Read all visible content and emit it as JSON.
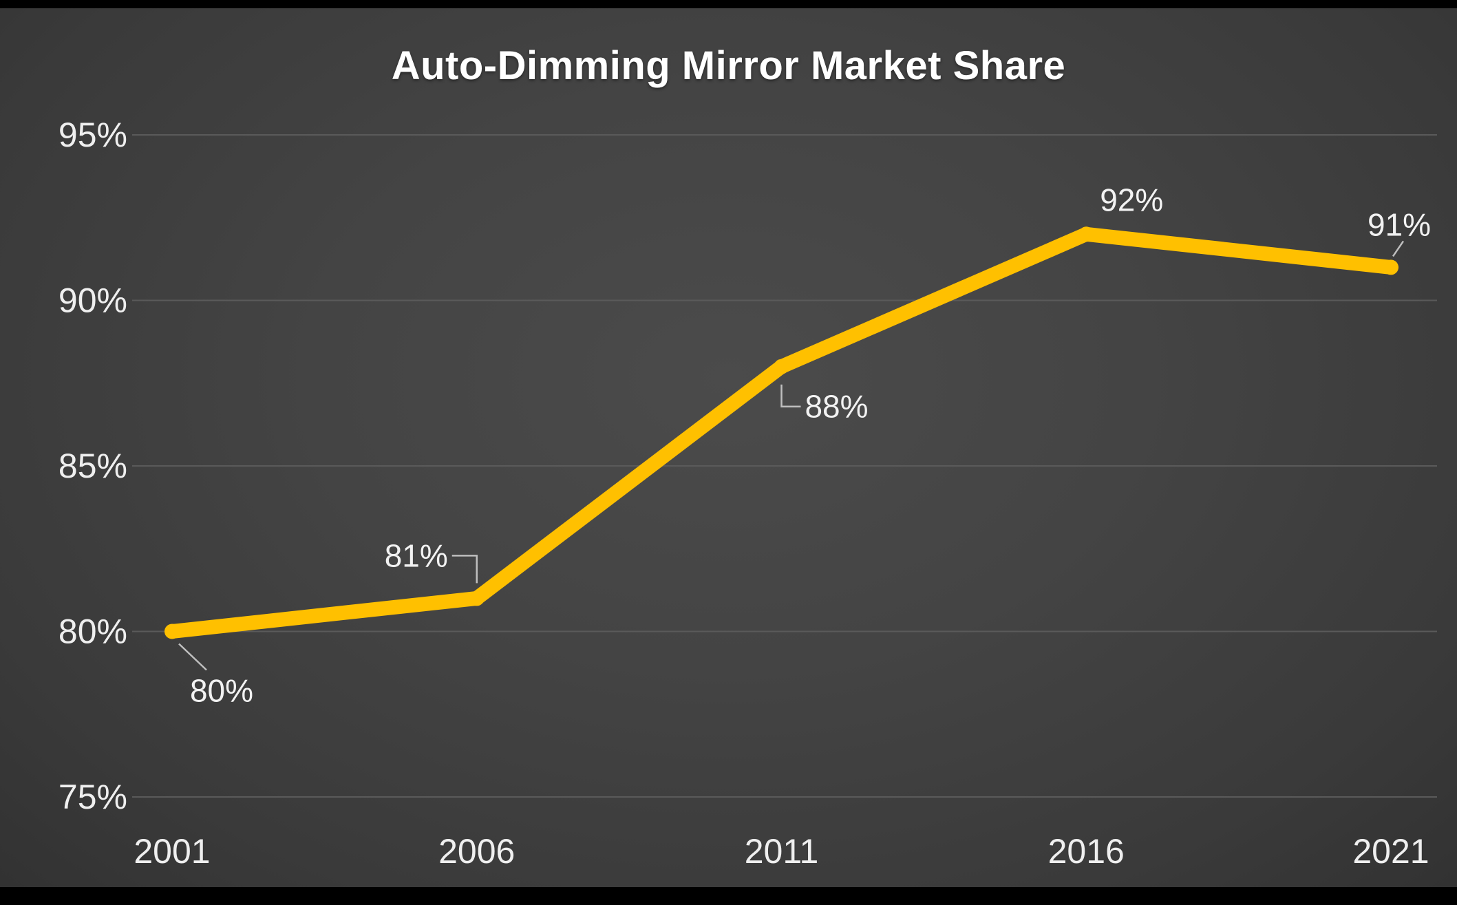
{
  "chart_data": {
    "type": "line",
    "title": "Auto-Dimming Mirror Market Share",
    "categories": [
      "2001",
      "2006",
      "2011",
      "2016",
      "2021"
    ],
    "values": [
      80,
      81,
      88,
      92,
      91
    ],
    "data_labels": [
      "80%",
      "81%",
      "88%",
      "92%",
      "91%"
    ],
    "xlabel": "",
    "ylabel": "",
    "ylim": [
      75,
      95
    ],
    "ytick_step": 5,
    "ytick_labels": [
      "75%",
      "80%",
      "85%",
      "90%",
      "95%"
    ],
    "grid": true,
    "legend_position": "none",
    "line_color": "#FFC000",
    "gridline_color": "#5a5a5a",
    "tick_label_color": "#efefef",
    "data_label_color": "#f2f2f2",
    "leader_line_color": "#bfbfbf",
    "background_color": "#404040",
    "title_color": "#ffffff"
  }
}
